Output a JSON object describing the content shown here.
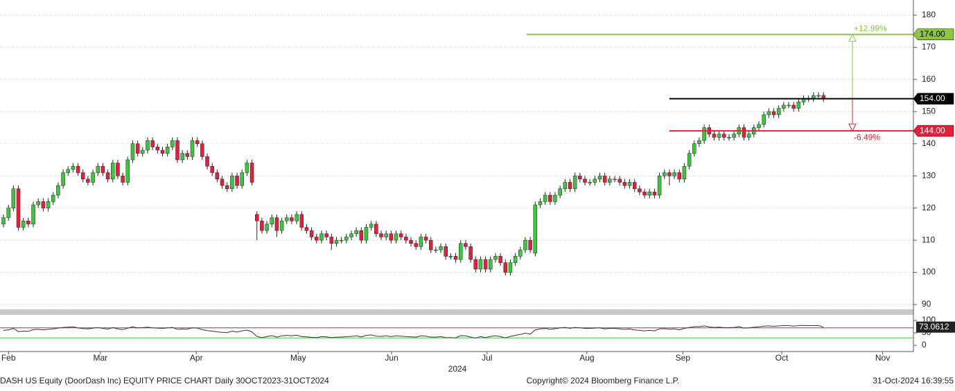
{
  "chart_data": {
    "type": "candlestick",
    "title": "DASH US Equity (DoorDash Inc) EQUITY PRICE CHART  Daily 30OCT2023-31OCT2024",
    "copyright": "Copyright© 2024 Bloomberg Finance L.P.",
    "timestamp": "31-Oct-2024 16:39:55",
    "year_label": "2024",
    "up_color": "#3ec43e",
    "down_color": "#e0203c",
    "grid": true,
    "xlim": [
      -0.7,
      183.1
    ],
    "xticks": [
      {
        "value": 1,
        "label": "Feb"
      },
      {
        "value": 19.5,
        "label": "Mar"
      },
      {
        "value": 38.8,
        "label": "Apr"
      },
      {
        "value": 59.3,
        "label": "May"
      },
      {
        "value": 78.1,
        "label": "Jun"
      },
      {
        "value": 97.3,
        "label": "Jul"
      },
      {
        "value": 117.4,
        "label": "Aug"
      },
      {
        "value": 136.7,
        "label": "Sep"
      },
      {
        "value": 156.6,
        "label": "Oct"
      },
      {
        "value": 176.9,
        "label": "Nov"
      }
    ],
    "ylim": [
      88.5,
      184.7
    ],
    "yticks": [
      90,
      100,
      110,
      120,
      130,
      140,
      150,
      160,
      170,
      180
    ],
    "open": [
      115,
      117,
      120,
      126,
      114,
      116,
      115,
      121,
      122,
      120,
      122,
      124,
      127,
      131,
      132,
      133,
      131,
      129,
      128,
      131,
      133,
      131,
      129,
      134,
      130,
      128,
      135,
      140,
      137,
      138,
      141,
      139,
      138,
      137,
      139,
      141,
      135,
      137,
      136,
      141,
      140,
      136,
      133,
      131,
      129,
      127,
      126,
      130,
      127,
      131,
      134,
      118,
      116,
      113,
      115,
      117,
      113,
      116,
      117,
      116,
      118,
      114,
      113,
      111,
      110,
      112,
      111,
      109,
      110,
      110,
      111,
      112,
      113,
      110,
      114,
      115,
      112,
      111,
      112,
      110,
      112,
      111,
      110,
      109,
      108,
      111,
      110,
      107,
      107,
      108,
      105,
      105,
      104,
      109,
      108,
      104,
      101,
      104,
      101,
      104,
      105,
      103,
      100,
      103,
      105,
      107,
      110,
      106,
      121,
      122,
      124,
      122,
      124,
      126,
      128,
      126,
      130,
      129,
      128,
      128,
      129,
      130,
      128,
      129,
      129,
      128,
      127,
      128,
      126,
      125,
      124,
      125,
      124,
      130,
      131,
      130,
      131,
      129,
      133,
      137,
      140,
      141,
      145,
      143,
      142,
      143,
      142,
      142,
      143,
      145,
      142,
      143,
      145,
      146,
      149,
      150,
      149,
      151,
      152,
      152,
      151,
      153,
      154,
      154,
      155,
      155
    ],
    "high": [
      118,
      121,
      127,
      127,
      117,
      117,
      122,
      123,
      123,
      123,
      125,
      128,
      132,
      133,
      134,
      134,
      132,
      130,
      132,
      134,
      134,
      132,
      135,
      135,
      131,
      136,
      141,
      141,
      139,
      142,
      142,
      140,
      139,
      140,
      142,
      142,
      138,
      138,
      142,
      142,
      141,
      137,
      134,
      132,
      130,
      128,
      131,
      131,
      132,
      135,
      135,
      119,
      117,
      116,
      118,
      118,
      117,
      118,
      118,
      119,
      119,
      115,
      114,
      112,
      113,
      113,
      112,
      111,
      111,
      112,
      113,
      114,
      114,
      115,
      116,
      116,
      113,
      113,
      113,
      113,
      113,
      112,
      111,
      110,
      112,
      112,
      111,
      108,
      109,
      109,
      106,
      106,
      110,
      110,
      109,
      105,
      105,
      105,
      105,
      106,
      106,
      104,
      104,
      106,
      108,
      111,
      111,
      122,
      123,
      125,
      125,
      125,
      127,
      129,
      129,
      131,
      131,
      130,
      129,
      130,
      131,
      131,
      130,
      130,
      130,
      129,
      129,
      129,
      127,
      126,
      126,
      126,
      131,
      132,
      132,
      132,
      132,
      134,
      138,
      141,
      142,
      146,
      146,
      144,
      144,
      144,
      143,
      144,
      146,
      146,
      144,
      146,
      147,
      150,
      151,
      151,
      152,
      153,
      153,
      153,
      154,
      155,
      155,
      156,
      156,
      156
    ],
    "low": [
      114,
      116,
      119,
      113,
      113,
      114,
      114,
      120,
      119,
      119,
      121,
      123,
      126,
      130,
      131,
      130,
      128,
      127,
      127,
      130,
      130,
      128,
      128,
      129,
      127,
      127,
      134,
      136,
      136,
      137,
      138,
      137,
      136,
      136,
      138,
      134,
      134,
      135,
      135,
      139,
      135,
      132,
      130,
      128,
      126,
      125,
      125,
      126,
      126,
      130,
      127,
      110,
      112,
      112,
      114,
      111,
      112,
      115,
      115,
      115,
      113,
      112,
      110,
      109,
      109,
      110,
      107,
      108,
      109,
      109,
      110,
      111,
      109,
      109,
      113,
      111,
      110,
      110,
      109,
      109,
      110,
      109,
      108,
      107,
      107,
      109,
      106,
      106,
      106,
      104,
      104,
      103,
      103,
      107,
      103,
      100,
      100,
      100,
      100,
      103,
      102,
      99,
      99,
      102,
      104,
      106,
      106,
      105,
      120,
      121,
      121,
      121,
      123,
      125,
      125,
      125,
      128,
      127,
      127,
      127,
      128,
      127,
      127,
      128,
      127,
      126,
      126,
      125,
      124,
      123,
      123,
      123,
      123,
      129,
      127,
      129,
      128,
      128,
      132,
      136,
      139,
      140,
      142,
      141,
      141,
      141,
      141,
      141,
      142,
      141,
      141,
      142,
      144,
      145,
      148,
      148,
      148,
      150,
      151,
      150,
      150,
      152,
      153,
      153,
      154,
      153
    ],
    "close": [
      117,
      120,
      126,
      114,
      116,
      115,
      121,
      122,
      120,
      122,
      124,
      127,
      131,
      132,
      133,
      131,
      129,
      128,
      131,
      133,
      131,
      129,
      134,
      130,
      128,
      135,
      140,
      137,
      138,
      141,
      139,
      138,
      137,
      139,
      141,
      135,
      137,
      136,
      141,
      140,
      136,
      133,
      131,
      129,
      127,
      126,
      130,
      127,
      131,
      134,
      128,
      116,
      113,
      115,
      117,
      113,
      116,
      117,
      116,
      118,
      114,
      113,
      111,
      110,
      112,
      111,
      109,
      110,
      110,
      111,
      112,
      113,
      110,
      114,
      115,
      112,
      111,
      112,
      110,
      112,
      111,
      110,
      109,
      108,
      111,
      110,
      107,
      107,
      108,
      105,
      105,
      104,
      109,
      108,
      104,
      101,
      104,
      101,
      104,
      105,
      103,
      100,
      103,
      105,
      107,
      110,
      107,
      121,
      122,
      124,
      122,
      124,
      126,
      128,
      126,
      130,
      129,
      128,
      128,
      129,
      130,
      128,
      129,
      129,
      128,
      127,
      128,
      126,
      125,
      124,
      125,
      124,
      130,
      131,
      130,
      131,
      129,
      133,
      137,
      140,
      141,
      145,
      143,
      142,
      143,
      142,
      142,
      143,
      145,
      142,
      143,
      145,
      146,
      149,
      150,
      149,
      151,
      152,
      152,
      151,
      153,
      154,
      154,
      155,
      155,
      154
    ],
    "levels": [
      {
        "value": 174,
        "label": "174.00",
        "color": "#8cc63f",
        "text_color": "#000000",
        "change": "+12.99%"
      },
      {
        "value": 154,
        "label": "154.00",
        "color": "#000000",
        "text_color": "#ffffff"
      },
      {
        "value": 144,
        "label": "144.00",
        "color": "#e0203c",
        "text_color": "#ffffff",
        "change": "-6.49%"
      }
    ],
    "rsi": {
      "color": "#333333",
      "ylim": [
        -22,
        122
      ],
      "yticks": [
        0,
        50,
        100
      ],
      "levels": [
        {
          "value": 70,
          "color": "#d42020"
        },
        {
          "value": 30,
          "color": "#3ec43e"
        }
      ],
      "values": [
        60,
        62,
        68,
        55,
        57,
        56,
        63,
        64,
        62,
        64,
        66,
        69,
        72,
        73,
        74,
        70,
        67,
        66,
        69,
        71,
        68,
        65,
        71,
        66,
        63,
        69,
        74,
        70,
        71,
        73,
        70,
        69,
        68,
        70,
        72,
        64,
        66,
        65,
        70,
        69,
        63,
        59,
        57,
        54,
        52,
        51,
        57,
        53,
        58,
        61,
        54,
        36,
        31,
        35,
        39,
        33,
        38,
        40,
        38,
        41,
        35,
        34,
        32,
        31,
        35,
        34,
        31,
        33,
        33,
        35,
        36,
        38,
        34,
        40,
        42,
        37,
        36,
        38,
        35,
        38,
        37,
        35,
        34,
        33,
        38,
        37,
        33,
        33,
        35,
        31,
        31,
        30,
        39,
        38,
        33,
        29,
        35,
        31,
        36,
        38,
        35,
        30,
        36,
        40,
        44,
        49,
        45,
        62,
        66,
        68,
        64,
        67,
        70,
        72,
        68,
        72,
        70,
        68,
        68,
        69,
        70,
        66,
        68,
        68,
        66,
        64,
        66,
        62,
        60,
        58,
        60,
        58,
        66,
        67,
        65,
        66,
        62,
        68,
        72,
        75,
        75,
        78,
        74,
        72,
        73,
        71,
        71,
        72,
        75,
        69,
        70,
        73,
        74,
        77,
        78,
        76,
        78,
        79,
        79,
        77,
        79,
        80,
        79,
        79,
        79,
        73.0612
      ]
    }
  }
}
